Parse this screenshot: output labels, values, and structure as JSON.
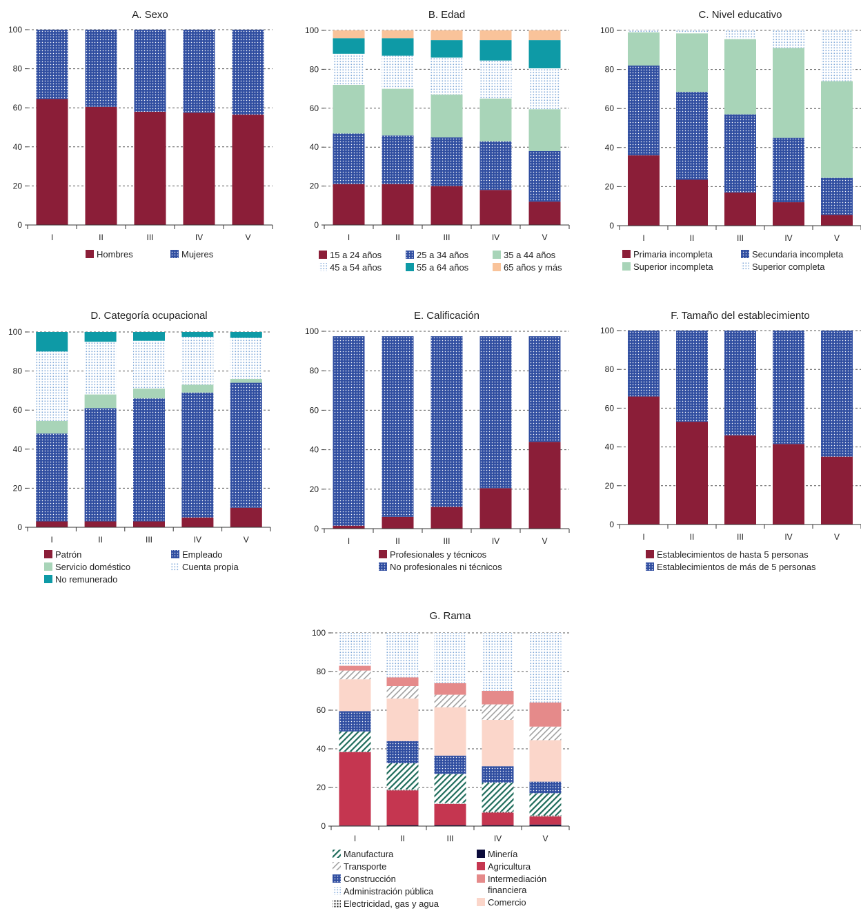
{
  "colors": {
    "hombres": "#8b1e38",
    "mujeres": "#2f4da0",
    "teal": "#0e9aa6",
    "green": "#a8d4b8",
    "peach": "#f9c39a",
    "lightblue": "#7fa8d8",
    "agricultura": "#c53650",
    "intermediacion": "#e58a8a",
    "comercio": "#fbd6ca",
    "mineria": "#0a0a3a",
    "manufactura": "#1d6b5a",
    "transporte": "#999999"
  },
  "chart_data": [
    {
      "id": "A",
      "type": "bar",
      "stacked": true,
      "title": "A. Sexo",
      "categories": [
        "I",
        "II",
        "III",
        "IV",
        "V"
      ],
      "ylim": [
        0,
        100
      ],
      "yticks": [
        0,
        20,
        40,
        60,
        80,
        100
      ],
      "grid": true,
      "legend_columns": 2,
      "series": [
        {
          "name": "Hombres",
          "pattern": "solid",
          "color": "#8b1e38",
          "values": [
            64.5,
            60.5,
            58,
            57.5,
            56.5
          ]
        },
        {
          "name": "Mujeres",
          "pattern": "dots",
          "color": "#2f4da0",
          "values": [
            35.5,
            39.5,
            42,
            42.5,
            43.5
          ]
        }
      ]
    },
    {
      "id": "B",
      "type": "bar",
      "stacked": true,
      "title": "B. Edad",
      "categories": [
        "I",
        "II",
        "III",
        "IV",
        "V"
      ],
      "ylim": [
        0,
        100
      ],
      "yticks": [
        0,
        20,
        40,
        60,
        80,
        100
      ],
      "grid": true,
      "legend_columns": 3,
      "series": [
        {
          "name": "15 a 24 años",
          "pattern": "solid",
          "color": "#8b1e38",
          "values": [
            21,
            21,
            20,
            18,
            12
          ]
        },
        {
          "name": "25 a 34 años",
          "pattern": "dots",
          "color": "#2f4da0",
          "values": [
            26,
            25,
            25,
            25,
            26
          ]
        },
        {
          "name": "35 a 44 años",
          "pattern": "solid",
          "color": "#a8d4b8",
          "values": [
            25,
            24,
            22,
            22,
            21.5
          ]
        },
        {
          "name": "45 a 54 años",
          "pattern": "lightdots",
          "color": "#7fa8d8",
          "values": [
            16,
            17,
            19,
            19.5,
            21
          ]
        },
        {
          "name": "55 a 64 años",
          "pattern": "solid",
          "color": "#0e9aa6",
          "values": [
            8,
            9,
            9,
            10.5,
            14.5
          ]
        },
        {
          "name": "65 años y más",
          "pattern": "solid",
          "color": "#f9c39a",
          "values": [
            4,
            4,
            5,
            5,
            5
          ]
        }
      ]
    },
    {
      "id": "C",
      "type": "bar",
      "stacked": true,
      "title": "C. Nivel educativo",
      "categories": [
        "I",
        "II",
        "III",
        "IV",
        "V"
      ],
      "ylim": [
        0,
        100
      ],
      "yticks": [
        0,
        20,
        40,
        60,
        80,
        100
      ],
      "grid": true,
      "legend_columns": 2,
      "series": [
        {
          "name": "Primaria incompleta",
          "pattern": "solid",
          "color": "#8b1e38",
          "values": [
            36,
            23.5,
            17,
            12,
            5.5
          ]
        },
        {
          "name": "Secundaria incompleta",
          "pattern": "dots",
          "color": "#2f4da0",
          "values": [
            46,
            45,
            40,
            33,
            19
          ]
        },
        {
          "name": "Superior incompleta",
          "pattern": "solid",
          "color": "#a8d4b8",
          "values": [
            17,
            30,
            38.5,
            46,
            49.5
          ]
        },
        {
          "name": "Superior completa",
          "pattern": "lightdots",
          "color": "#7fa8d8",
          "values": [
            1,
            1.5,
            4.5,
            9,
            26
          ]
        }
      ]
    },
    {
      "id": "D",
      "type": "bar",
      "stacked": true,
      "title": "D. Categoría ocupacional",
      "categories": [
        "I",
        "II",
        "III",
        "IV",
        "V"
      ],
      "ylim": [
        0,
        100
      ],
      "yticks": [
        0,
        20,
        40,
        60,
        80,
        100
      ],
      "grid": true,
      "legend_columns": 2,
      "series": [
        {
          "name": "Patrón",
          "pattern": "solid",
          "color": "#8b1e38",
          "values": [
            3,
            3,
            3,
            5,
            10
          ]
        },
        {
          "name": "Empleado",
          "pattern": "dots",
          "color": "#2f4da0",
          "values": [
            45,
            58,
            63,
            64,
            64
          ]
        },
        {
          "name": "Servicio doméstico",
          "pattern": "solid",
          "color": "#a8d4b8",
          "values": [
            6.5,
            7,
            5,
            4,
            2
          ]
        },
        {
          "name": "Cuenta propia",
          "pattern": "lightdots",
          "color": "#7fa8d8",
          "values": [
            35.5,
            27,
            24.5,
            24.5,
            21
          ]
        },
        {
          "name": "No remunerado",
          "pattern": "solid",
          "color": "#0e9aa6",
          "values": [
            10,
            5,
            4.5,
            2.5,
            3
          ]
        }
      ]
    },
    {
      "id": "E",
      "type": "bar",
      "stacked": true,
      "title": "E. Calificación",
      "categories": [
        "I",
        "II",
        "III",
        "IV",
        "V"
      ],
      "ylim": [
        0,
        100
      ],
      "yticks": [
        0,
        20,
        40,
        60,
        80,
        100
      ],
      "grid": true,
      "legend_columns": 1,
      "series": [
        {
          "name": "Profesionales y técnicos",
          "pattern": "solid",
          "color": "#8b1e38",
          "values": [
            1.5,
            6,
            11,
            20.5,
            44
          ]
        },
        {
          "name": "No profesionales ni técnicos",
          "pattern": "dots",
          "color": "#2f4da0",
          "values": [
            96,
            91.5,
            86.5,
            77,
            53.5
          ]
        }
      ]
    },
    {
      "id": "F",
      "type": "bar",
      "stacked": true,
      "title": "F. Tamaño del establecimiento",
      "categories": [
        "I",
        "II",
        "III",
        "IV",
        "V"
      ],
      "ylim": [
        0,
        100
      ],
      "yticks": [
        0,
        20,
        40,
        60,
        80,
        100
      ],
      "grid": true,
      "legend_columns": 1,
      "series": [
        {
          "name": "Establecimientos de hasta 5 personas",
          "pattern": "solid",
          "color": "#8b1e38",
          "values": [
            66,
            53,
            46,
            41.5,
            35
          ]
        },
        {
          "name": "Establecimientos de más de 5 personas",
          "pattern": "dots",
          "color": "#2f4da0",
          "values": [
            34,
            47,
            54,
            58.5,
            65
          ]
        }
      ]
    },
    {
      "id": "G",
      "type": "bar",
      "stacked": true,
      "title": "G. Rama",
      "categories": [
        "I",
        "II",
        "III",
        "IV",
        "V"
      ],
      "ylim": [
        0,
        100
      ],
      "yticks": [
        0,
        20,
        40,
        60,
        80,
        100
      ],
      "grid": true,
      "legend_columns": 2,
      "legend_order": [
        [
          "Manufactura",
          "Transporte",
          "Construcción",
          "Administración pública",
          "Electricidad, gas y agua"
        ],
        [
          "Minería",
          "Agricultura",
          "Intermediación financiera",
          "Comercio"
        ]
      ],
      "series": [
        {
          "name": "Minería",
          "pattern": "solid",
          "color": "#0a0a3a",
          "values": [
            0.3,
            0.5,
            0.5,
            0.5,
            0.8
          ]
        },
        {
          "name": "Agricultura",
          "pattern": "solid",
          "color": "#c53650",
          "values": [
            38,
            18,
            11,
            6.5,
            4.2
          ]
        },
        {
          "name": "Electricidad, gas y agua",
          "pattern": "blackdots",
          "color": "#111111",
          "values": [
            0.2,
            0.5,
            0.5,
            0.5,
            0.5
          ]
        },
        {
          "name": "Manufactura",
          "pattern": "hatch",
          "color": "#1d6b5a",
          "values": [
            10.5,
            13.5,
            15,
            15,
            11.5
          ]
        },
        {
          "name": "Construcción",
          "pattern": "dots",
          "color": "#2f4da0",
          "values": [
            10.5,
            11.5,
            9.5,
            8.5,
            6
          ]
        },
        {
          "name": "Comercio",
          "pattern": "solid",
          "color": "#fbd6ca",
          "values": [
            16.5,
            22,
            25,
            24,
            21.5
          ]
        },
        {
          "name": "Transporte",
          "pattern": "hatchgray",
          "color": "#999999",
          "values": [
            4.5,
            6.5,
            6.5,
            8,
            7
          ]
        },
        {
          "name": "Intermediación financiera",
          "pattern": "solid",
          "color": "#e58a8a",
          "values": [
            2.5,
            4.5,
            6,
            7,
            12.5
          ]
        },
        {
          "name": "Administración pública",
          "pattern": "lightdots",
          "color": "#7fa8d8",
          "values": [
            17,
            23,
            26,
            30,
            36
          ]
        }
      ]
    }
  ]
}
